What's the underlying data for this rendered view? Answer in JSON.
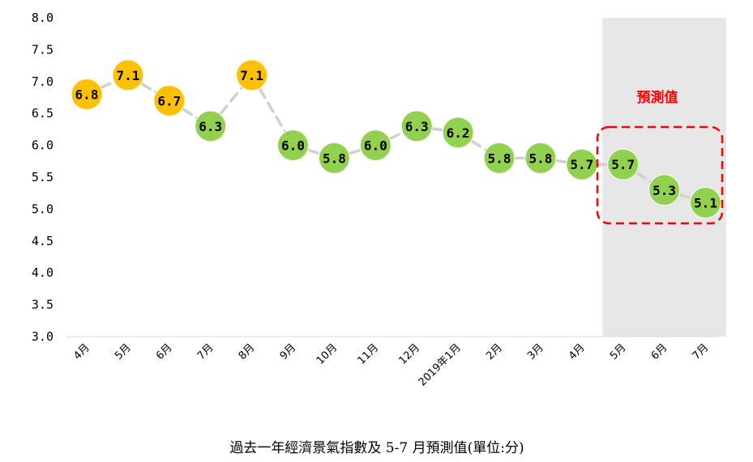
{
  "chart_data": {
    "type": "line",
    "caption": "過去一年經濟景氣指數及 5-7 月預測值(單位:分)",
    "annotation": "預測值",
    "categories": [
      "4月",
      "5月",
      "6月",
      "7月",
      "8月",
      "9月",
      "10月",
      "11月",
      "12月",
      "2019年1月",
      "2月",
      "3月",
      "4月",
      "5月",
      "6月",
      "7月"
    ],
    "values": [
      6.8,
      7.1,
      6.7,
      6.3,
      7.1,
      6.0,
      5.8,
      6.0,
      6.3,
      6.2,
      5.8,
      5.8,
      5.7,
      5.7,
      5.3,
      5.1
    ],
    "value_labels": [
      "6.8",
      "7.1",
      "6.7",
      "6.3",
      "7.1",
      "6.0",
      "5.8",
      "6.0",
      "6.3",
      "6.2",
      "5.8",
      "5.8",
      "5.7",
      "5.7",
      "5.3",
      "5.1"
    ],
    "point_colors": [
      "#FFC000",
      "#FFC000",
      "#FFC000",
      "#92D050",
      "#FFC000",
      "#92D050",
      "#92D050",
      "#92D050",
      "#92D050",
      "#92D050",
      "#92D050",
      "#92D050",
      "#92D050",
      "#92D050",
      "#92D050",
      "#92D050"
    ],
    "forecast_start_index": 13,
    "y_ticks": [
      "3.0",
      "3.5",
      "4.0",
      "4.5",
      "5.0",
      "5.5",
      "6.0",
      "6.5",
      "7.0",
      "7.5",
      "8.0"
    ],
    "ylim": [
      3.0,
      8.0
    ],
    "grid": false,
    "colors": {
      "yellow_marker": "#FFC000",
      "green_marker": "#92D050",
      "line": "#D0D0D0",
      "forecast_shade": "#E6E6E6",
      "highlight": "#FF0000"
    }
  }
}
